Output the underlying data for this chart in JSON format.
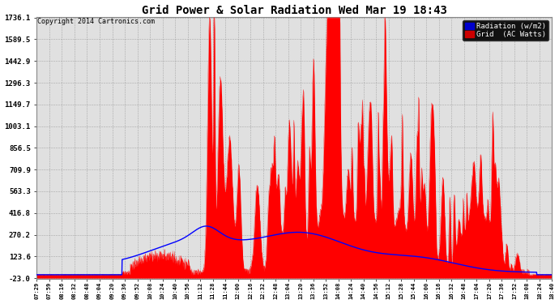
{
  "title": "Grid Power & Solar Radiation Wed Mar 19 18:43",
  "copyright": "Copyright 2014 Cartronics.com",
  "yticks": [
    1736.1,
    1589.5,
    1442.9,
    1296.3,
    1149.7,
    1003.1,
    856.5,
    709.9,
    563.3,
    416.8,
    270.2,
    123.6,
    -23.0
  ],
  "ymin": -23.0,
  "ymax": 1736.1,
  "legend_labels": [
    "Radiation (w/m2)",
    "Grid  (AC Watts)"
  ],
  "radiation_color": "#0000ff",
  "grid_power_color": "#ff0000",
  "bg_color": "#ffffff",
  "plot_bg": "#e8e8e8",
  "xtick_labels": [
    "07:29",
    "07:59",
    "08:16",
    "08:32",
    "08:48",
    "09:04",
    "09:20",
    "09:36",
    "09:52",
    "10:08",
    "10:24",
    "10:40",
    "10:56",
    "11:12",
    "11:28",
    "11:44",
    "12:00",
    "12:16",
    "12:32",
    "12:48",
    "13:04",
    "13:20",
    "13:36",
    "13:52",
    "14:08",
    "14:24",
    "14:40",
    "14:56",
    "15:12",
    "15:28",
    "15:44",
    "16:00",
    "16:16",
    "16:32",
    "16:48",
    "17:04",
    "17:20",
    "17:36",
    "17:52",
    "18:08",
    "18:24",
    "18:40"
  ]
}
